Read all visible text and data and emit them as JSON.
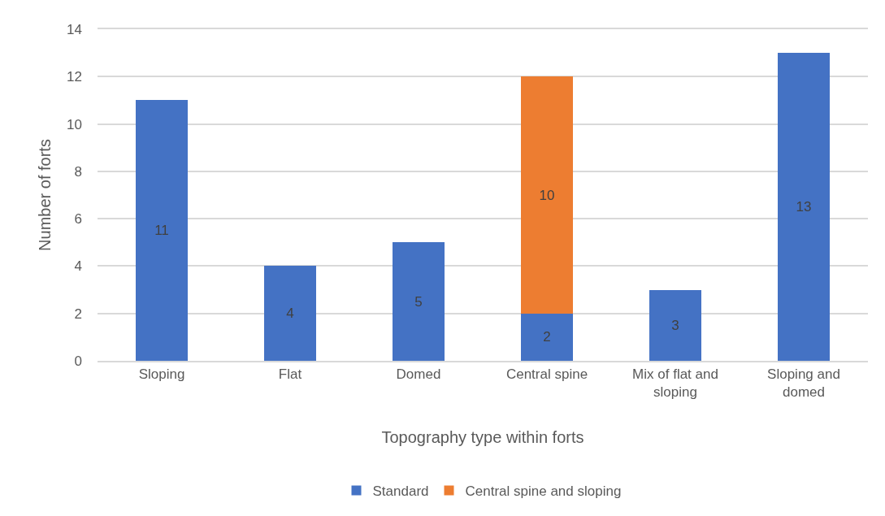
{
  "chart_data": {
    "type": "bar",
    "xlabel": "Topography type within forts",
    "ylabel": "Number of forts",
    "categories": [
      "Sloping",
      "Flat",
      "Domed",
      "Central spine",
      "Mix of flat and sloping",
      "Sloping and domed"
    ],
    "series": [
      {
        "name": "Standard",
        "color": "#4472c4",
        "values": [
          11,
          4,
          5,
          2,
          3,
          13
        ]
      },
      {
        "name": "Central spine and sloping",
        "color": "#ed7d31",
        "values": [
          null,
          null,
          null,
          10,
          null,
          null
        ]
      }
    ],
    "stacked": true,
    "ylim": [
      0,
      14
    ],
    "yticks": [
      0,
      2,
      4,
      6,
      8,
      10,
      12,
      14
    ],
    "grid": "y",
    "legend": "bottom",
    "data_labels": true
  }
}
